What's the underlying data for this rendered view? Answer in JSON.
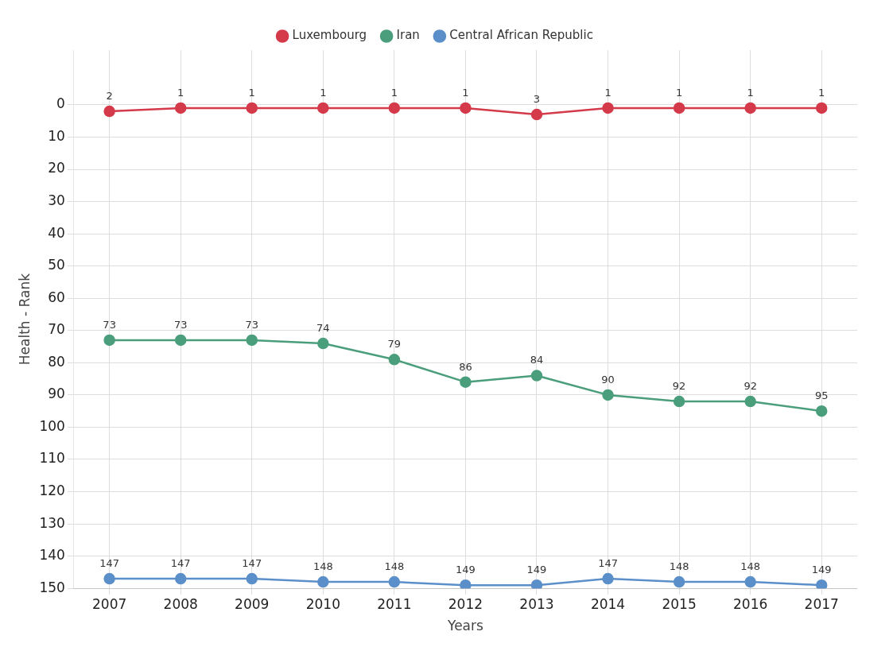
{
  "chart_data": {
    "type": "line",
    "xlabel": "Years",
    "ylabel": "Health - Rank",
    "categories": [
      "2007",
      "2008",
      "2009",
      "2010",
      "2011",
      "2012",
      "2013",
      "2014",
      "2015",
      "2016",
      "2017"
    ],
    "series": [
      {
        "name": "Luxembourg",
        "color": "#d43a4a",
        "values": [
          2,
          1,
          1,
          1,
          1,
          1,
          3,
          1,
          1,
          1,
          1
        ]
      },
      {
        "name": "Iran",
        "color": "#4a9e7c",
        "values": [
          73,
          73,
          73,
          74,
          79,
          86,
          84,
          90,
          92,
          92,
          95
        ]
      },
      {
        "name": "Central African Republic",
        "color": "#5b8fc9",
        "values": [
          147,
          147,
          147,
          148,
          148,
          149,
          149,
          147,
          148,
          148,
          149
        ]
      }
    ],
    "ylim": [
      150,
      -17
    ],
    "yticks": [
      0,
      10,
      20,
      30,
      40,
      50,
      60,
      70,
      80,
      90,
      100,
      110,
      120,
      130,
      140,
      150
    ],
    "grid": true,
    "legend": "top",
    "marker": "circle",
    "data_labels": true
  }
}
